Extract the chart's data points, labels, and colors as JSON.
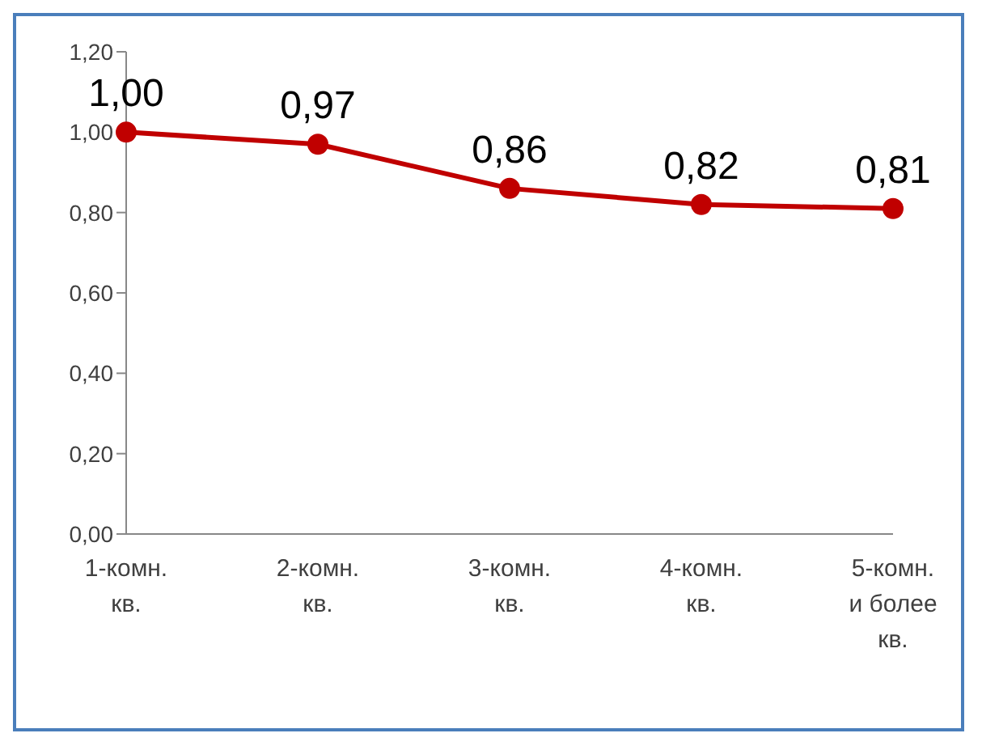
{
  "chart_data": {
    "type": "line",
    "categories": [
      "1-комн.\nкв.",
      "2-комн.\nкв.",
      "3-комн.\nкв.",
      "4-комн.\nкв.",
      "5-комн.\nи более\nкв."
    ],
    "series": [
      {
        "color": "#c00000",
        "values": [
          1.0,
          0.97,
          0.86,
          0.82,
          0.81
        ],
        "value_labels": [
          "1,00",
          "0,97",
          "0,86",
          "0,82",
          "0,81"
        ]
      }
    ],
    "ylim": [
      0,
      1.2
    ],
    "yticks": [
      {
        "value": 0,
        "label": "0,00"
      },
      {
        "value": 0.2,
        "label": "0,20"
      },
      {
        "value": 0.4,
        "label": "0,40"
      },
      {
        "value": 0.6,
        "label": "0,60"
      },
      {
        "value": 0.8,
        "label": "0,80"
      },
      {
        "value": 1.0,
        "label": "1,00"
      },
      {
        "value": 1.2,
        "label": "1,20"
      }
    ],
    "grid": false,
    "legend": false,
    "marker": "circle",
    "line_style": "solid"
  }
}
